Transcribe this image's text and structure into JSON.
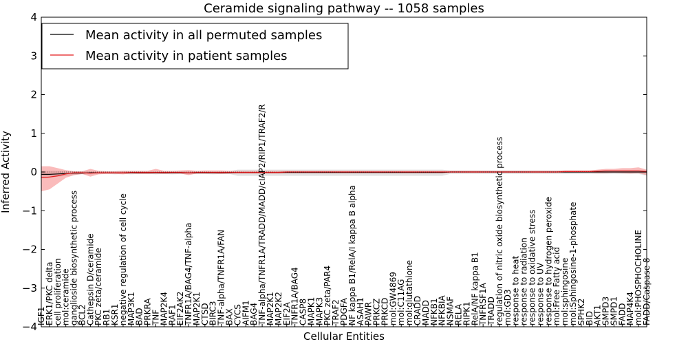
{
  "chart_data": {
    "type": "line",
    "title": "Ceramide signaling pathway -- 1058 samples",
    "xlabel": "Cellular Entities",
    "ylabel": "Inferred Activity",
    "ylim": [
      -4,
      4
    ],
    "yticks": [
      -4,
      -3,
      -2,
      -1,
      0,
      1,
      2,
      3,
      4
    ],
    "legend_position": "upper-left",
    "categories": [
      "IGF1",
      "ERK1/PKC delta",
      "cell proliferation",
      "mol:ceramide",
      "ganglioside biosynthetic process",
      "BCL2",
      "Cathepsin D/ceramide",
      "PKC zeta/ceramide",
      "RB1",
      "KSR1",
      "negative regulation of cell cycle",
      "MAP3K1",
      "BAD",
      "PRKRA",
      "TNF",
      "MAP2K4",
      "RAF1",
      "EIF2AK2",
      "TNFR1A/BAG4/TNF-alpha",
      "MAP2K1",
      "CTSD",
      "BIRC3",
      "TNF-alpha/TNFR1A/FAN",
      "BAX",
      "CYCS",
      "AIFM1",
      "BAG4",
      "TNF-alpha/TNFR1A/TRADD/MADD/cIAP2/RIP1/TRAF2/R",
      "MAP2K1",
      "MAP2K2",
      "EIF2A",
      "TNFR1A/BAG4",
      "CASP8",
      "MAPK1",
      "MAPK3",
      "PKC zeta/PAR4",
      "TRAF2",
      "PDGFA",
      "NF kappa B1/RelA/I kappa B alpha",
      "ASAH1",
      "PAWR",
      "PRKCZ",
      "PRKCD",
      "mol:GW4869",
      "mol:C11AG",
      "mol:glutathione",
      "CRADD",
      "MADD",
      "NFKB1",
      "NFKBIA",
      "NSMAF",
      "RELA",
      "RIPK1",
      "RelA/NF kappa B1",
      "TNFRSF1A",
      "TRADD",
      "regulation of nitric oxide biosynthetic process",
      "mol:GD3",
      "response to heat",
      "response to radiation",
      "response to oxidative stress",
      "response to UV",
      "response to hydrogen peroxide",
      "mol:Free Fatty acid",
      "mol:sphingosine",
      "mol:Sphingosine-1-phosphate",
      "SPHK2",
      "BID",
      "AKT1",
      "SMPD3",
      "SMPD1",
      "FADD",
      "MAP4K4",
      "mol:PHOSPHOCHOLINE",
      "FADD/Caspase 8"
    ],
    "series": [
      {
        "name": "Mean activity in all permuted samples",
        "color": "#000000",
        "values": [
          -0.06,
          -0.06,
          -0.05,
          -0.04,
          -0.03,
          -0.03,
          -0.02,
          -0.02,
          -0.02,
          -0.02,
          -0.02,
          -0.02,
          -0.02,
          -0.02,
          -0.02,
          -0.02,
          -0.02,
          -0.02,
          -0.02,
          -0.02,
          -0.02,
          -0.02,
          -0.02,
          -0.02,
          -0.01,
          -0.01,
          -0.01,
          -0.01,
          -0.01,
          -0.01,
          -0.01,
          -0.01,
          -0.01,
          -0.01,
          -0.01,
          -0.01,
          -0.01,
          -0.01,
          -0.01,
          -0.01,
          -0.01,
          -0.01,
          -0.01,
          -0.01,
          -0.01,
          -0.01,
          -0.01,
          -0.01,
          -0.01,
          -0.01,
          0.0,
          0.0,
          0.0,
          0.0,
          0.0,
          0.0,
          0.0,
          0.0,
          0.0,
          0.0,
          0.0,
          0.0,
          0.0,
          0.0,
          0.0,
          0.0,
          0.0,
          0.0,
          0.0,
          0.0,
          0.0,
          0.0,
          0.0,
          0.0,
          0.0
        ],
        "band_lower": [
          -0.15,
          -0.15,
          -0.12,
          -0.1,
          -0.08,
          -0.06,
          -0.06,
          -0.05,
          -0.05,
          -0.06,
          -0.05,
          -0.06,
          -0.05,
          -0.05,
          -0.06,
          -0.05,
          -0.06,
          -0.05,
          -0.06,
          -0.05,
          -0.05,
          -0.06,
          -0.05,
          -0.05,
          -0.1,
          -0.1,
          -0.1,
          -0.1,
          -0.1,
          -0.1,
          -0.1,
          -0.1,
          -0.1,
          -0.1,
          -0.1,
          -0.1,
          -0.1,
          -0.1,
          -0.1,
          -0.1,
          -0.1,
          -0.1,
          -0.1,
          -0.1,
          -0.1,
          -0.1,
          -0.1,
          -0.1,
          -0.1,
          -0.1,
          -0.05,
          -0.05,
          -0.05,
          -0.05,
          -0.05,
          -0.05,
          -0.05,
          -0.05,
          -0.05,
          -0.05,
          -0.05,
          -0.05,
          -0.05,
          -0.05,
          -0.05,
          -0.05,
          -0.05,
          -0.05,
          -0.05,
          -0.05,
          -0.05,
          -0.05,
          -0.05,
          -0.05,
          -0.1
        ],
        "band_upper": [
          0.03,
          0.03,
          0.03,
          0.02,
          0.02,
          0.02,
          0.02,
          0.02,
          0.02,
          0.02,
          0.02,
          0.02,
          0.02,
          0.02,
          0.02,
          0.02,
          0.02,
          0.02,
          0.02,
          0.02,
          0.02,
          0.02,
          0.02,
          0.02,
          0.06,
          0.06,
          0.06,
          0.06,
          0.06,
          0.06,
          0.06,
          0.06,
          0.06,
          0.06,
          0.06,
          0.06,
          0.06,
          0.06,
          0.06,
          0.06,
          0.06,
          0.06,
          0.06,
          0.06,
          0.06,
          0.06,
          0.06,
          0.06,
          0.06,
          0.06,
          0.04,
          0.04,
          0.04,
          0.04,
          0.04,
          0.04,
          0.04,
          0.04,
          0.04,
          0.04,
          0.04,
          0.04,
          0.04,
          0.04,
          0.04,
          0.04,
          0.04,
          0.04,
          0.04,
          0.04,
          0.04,
          0.04,
          0.04,
          0.04,
          0.04
        ]
      },
      {
        "name": "Mean activity in patient samples",
        "color": "#e31a1c",
        "values": [
          -0.15,
          -0.13,
          -0.1,
          -0.05,
          -0.02,
          -0.02,
          -0.03,
          -0.02,
          -0.02,
          -0.02,
          -0.02,
          -0.01,
          -0.01,
          -0.01,
          -0.01,
          -0.01,
          -0.01,
          -0.01,
          -0.02,
          -0.01,
          -0.01,
          -0.01,
          -0.01,
          -0.01,
          -0.01,
          -0.01,
          -0.01,
          -0.01,
          -0.01,
          -0.01,
          0.0,
          0.0,
          0.0,
          0.0,
          0.0,
          0.0,
          0.0,
          0.0,
          0.0,
          0.0,
          0.0,
          0.0,
          0.0,
          0.0,
          0.0,
          0.0,
          0.0,
          0.0,
          0.0,
          0.0,
          0.0,
          0.0,
          0.0,
          0.0,
          0.0,
          0.0,
          0.0,
          0.0,
          0.0,
          0.0,
          0.0,
          0.0,
          0.0,
          0.0,
          0.01,
          0.01,
          0.01,
          0.01,
          0.02,
          0.03,
          0.03,
          0.03,
          0.03,
          0.03,
          0.01
        ],
        "band_lower": [
          -0.5,
          -0.45,
          -0.3,
          -0.15,
          -0.08,
          -0.05,
          -0.12,
          -0.06,
          -0.05,
          -0.05,
          -0.06,
          -0.04,
          -0.05,
          -0.05,
          -0.04,
          -0.05,
          -0.04,
          -0.04,
          -0.08,
          -0.04,
          -0.04,
          -0.04,
          -0.05,
          -0.04,
          -0.04,
          -0.04,
          -0.04,
          -0.04,
          -0.04,
          -0.04,
          -0.03,
          -0.03,
          -0.03,
          -0.03,
          -0.03,
          -0.03,
          -0.03,
          -0.03,
          -0.03,
          -0.03,
          -0.03,
          -0.03,
          -0.03,
          -0.03,
          -0.03,
          -0.03,
          -0.03,
          -0.03,
          -0.03,
          -0.03,
          -0.02,
          -0.02,
          -0.02,
          -0.02,
          -0.02,
          -0.02,
          -0.02,
          -0.02,
          -0.02,
          -0.02,
          -0.02,
          -0.02,
          -0.02,
          -0.02,
          -0.02,
          -0.02,
          -0.02,
          -0.02,
          -0.03,
          -0.03,
          -0.02,
          -0.03,
          -0.04,
          -0.03,
          -0.08
        ],
        "band_upper": [
          0.15,
          0.15,
          0.1,
          0.05,
          0.02,
          0.02,
          0.08,
          0.03,
          0.02,
          0.02,
          0.03,
          0.03,
          0.03,
          0.03,
          0.08,
          0.03,
          0.03,
          0.04,
          0.05,
          0.03,
          0.04,
          0.04,
          0.04,
          0.03,
          0.03,
          0.03,
          0.03,
          0.03,
          0.03,
          0.03,
          0.03,
          0.03,
          0.03,
          0.03,
          0.03,
          0.03,
          0.03,
          0.03,
          0.03,
          0.03,
          0.03,
          0.03,
          0.03,
          0.03,
          0.03,
          0.03,
          0.03,
          0.03,
          0.03,
          0.03,
          0.03,
          0.03,
          0.03,
          0.03,
          0.03,
          0.03,
          0.03,
          0.03,
          0.03,
          0.03,
          0.03,
          0.03,
          0.03,
          0.03,
          0.04,
          0.04,
          0.04,
          0.04,
          0.06,
          0.08,
          0.08,
          0.1,
          0.1,
          0.12,
          0.06
        ]
      }
    ]
  }
}
